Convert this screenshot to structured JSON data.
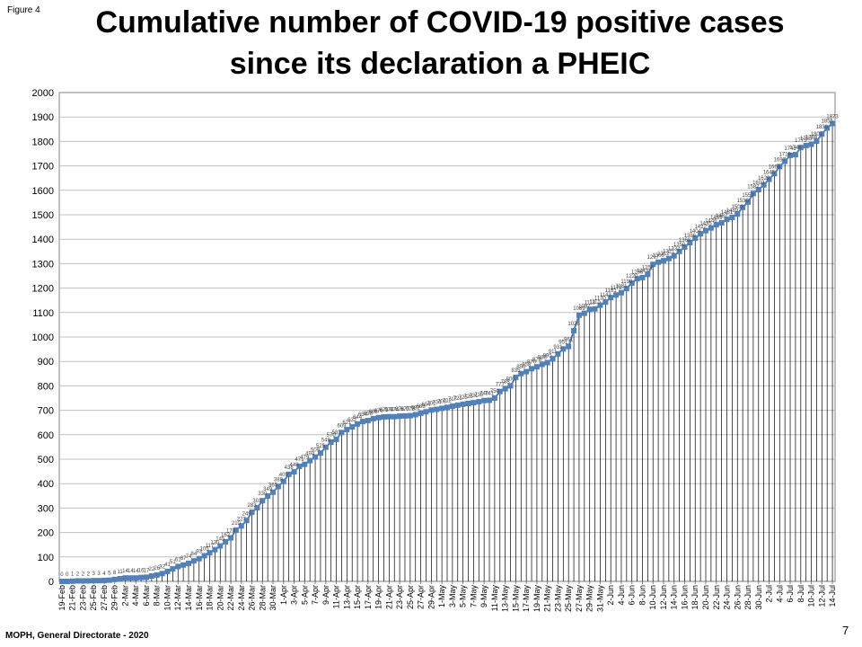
{
  "figure_label": "Figure 4",
  "title_line1": "Cumulative number of COVID-19 positive cases",
  "title_line2": "since its declaration a PHEIC",
  "footer": "MOPH, General Directorate - 2020",
  "page_number": "7",
  "chart_data": {
    "type": "line",
    "title": "Cumulative number of COVID-19 positive cases since its declaration a PHEIC",
    "xlabel": "",
    "ylabel": "",
    "ylim": [
      0,
      2000
    ],
    "y_ticks": [
      0,
      100,
      200,
      300,
      400,
      500,
      600,
      700,
      800,
      900,
      1000,
      1100,
      1200,
      1300,
      1400,
      1500,
      1600,
      1700,
      1800,
      1900,
      2000
    ],
    "grid": true,
    "x_start": "2020-02-19",
    "x_end": "2020-07-14",
    "x_tick_labels": [
      "19-Feb",
      "21-Feb",
      "23-Feb",
      "25-Feb",
      "27-Feb",
      "29-Feb",
      "2-Mar",
      "4-Mar",
      "6-Mar",
      "8-Mar",
      "10-Mar",
      "12-Mar",
      "14-Mar",
      "16-Mar",
      "18-Mar",
      "20-Mar",
      "22-Mar",
      "24-Mar",
      "26-Mar",
      "28-Mar",
      "30-Mar",
      "1-Apr",
      "3-Apr",
      "5-Apr",
      "7-Apr",
      "9-Apr",
      "11-Apr",
      "13-Apr",
      "15-Apr",
      "17-Apr",
      "19-Apr",
      "21-Apr",
      "23-Apr",
      "25-Apr",
      "27-Apr",
      "29-Apr",
      "1-May",
      "3-May",
      "5-May",
      "7-May",
      "9-May",
      "11-May",
      "13-May",
      "15-May",
      "17-May",
      "19-May",
      "21-May",
      "23-May",
      "25-May",
      "27-May",
      "29-May",
      "31-May",
      "2-Jun",
      "4-Jun",
      "6-Jun",
      "8-Jun",
      "10-Jun",
      "12-Jun",
      "14-Jun",
      "16-Jun",
      "18-Jun",
      "20-Jun",
      "22-Jun",
      "24-Jun",
      "26-Jun",
      "28-Jun",
      "30-Jun",
      "2-Jul",
      "4-Jul",
      "6-Jul",
      "8-Jul",
      "10-Jul",
      "12-Jul",
      "14-Jul"
    ],
    "series": [
      {
        "name": "",
        "color": "#4f81bd",
        "marker": "square",
        "dates": [
          "2020-02-19",
          "2020-07-03"
        ],
        "values": [
          0,
          0,
          1,
          2,
          2,
          2,
          3,
          3,
          4,
          5,
          8,
          11,
          14,
          14,
          14,
          16,
          17,
          22,
          26,
          32,
          41,
          51,
          61,
          67,
          74,
          84,
          93,
          105,
          117,
          130,
          145,
          162,
          178,
          210,
          227,
          249,
          283,
          301,
          330,
          349,
          365,
          388,
          409,
          438,
          448,
          471,
          479,
          494,
          509,
          525,
          549,
          570,
          581,
          609,
          621,
          632,
          644,
          654,
          658,
          666,
          670,
          673,
          674,
          674,
          676,
          677,
          678,
          682,
          688,
          694,
          701,
          704,
          708,
          712,
          717,
          721,
          725,
          728,
          731,
          735,
          740,
          741,
          750,
          777,
          788,
          800,
          835,
          850,
          858,
          870,
          878,
          888,
          895,
          911,
          931,
          951,
          961,
          1026,
          1089,
          1097,
          1113,
          1115,
          1130,
          1143,
          1161,
          1172,
          1181,
          1198,
          1220,
          1238,
          1243,
          1256,
          1297,
          1306,
          1312,
          1321,
          1332,
          1350,
          1368,
          1386,
          1404,
          1422,
          1435,
          1446,
          1459,
          1467,
          1481,
          1489,
          1503,
          1530,
          1552,
          1587,
          1603,
          1622,
          1645,
          1668,
          1697,
          1719,
          1743,
          1746,
          1775,
          1783,
          1788,
          1801,
          1830,
          1855,
          1873
        ]
      }
    ]
  }
}
